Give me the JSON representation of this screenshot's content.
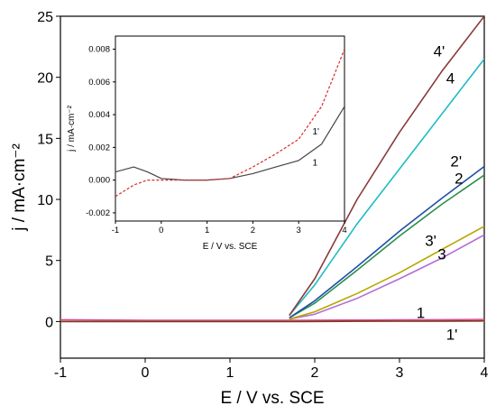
{
  "chart_data": [
    {
      "type": "line",
      "title": "",
      "xlabel": "E / V vs. SCE",
      "ylabel": "j / mA·cm⁻²",
      "xlim": [
        -1,
        4
      ],
      "ylim": [
        -3,
        25
      ],
      "xticks": [
        "-1",
        "0",
        "1",
        "2",
        "3",
        "4"
      ],
      "yticks": [
        "0",
        "5",
        "10",
        "15",
        "20",
        "25"
      ],
      "grid": false,
      "legend": "none",
      "series": [
        {
          "name": "1",
          "color": "#d94a8c",
          "style": "solid",
          "x": [
            -1,
            0,
            1,
            1.8,
            2.5,
            3,
            3.5,
            4
          ],
          "y": [
            0.15,
            0.1,
            0.1,
            0.1,
            0.12,
            0.13,
            0.15,
            0.18
          ]
        },
        {
          "name": "1'",
          "color": "#7a3b1f",
          "style": "solid",
          "x": [
            -1,
            0,
            1,
            1.8,
            2.5,
            3,
            3.5,
            4
          ],
          "y": [
            0.0,
            0.0,
            0.0,
            0.0,
            0.02,
            0.03,
            0.04,
            0.05
          ]
        },
        {
          "name": "2",
          "color": "#2a8f4a",
          "style": "solid",
          "x": [
            1.7,
            2.0,
            2.5,
            3.0,
            3.5,
            4.0
          ],
          "y": [
            0.3,
            1.5,
            4.2,
            7.0,
            9.6,
            12.0
          ]
        },
        {
          "name": "2'",
          "color": "#1f4fa8",
          "style": "solid",
          "x": [
            1.7,
            2.0,
            2.5,
            3.0,
            3.5,
            4.0
          ],
          "y": [
            0.3,
            1.7,
            4.5,
            7.4,
            10.1,
            12.7
          ]
        },
        {
          "name": "3",
          "color": "#b56cd6",
          "style": "solid",
          "x": [
            1.7,
            2.0,
            2.5,
            3.0,
            3.5,
            4.0
          ],
          "y": [
            0.2,
            0.6,
            1.9,
            3.5,
            5.2,
            7.1
          ]
        },
        {
          "name": "3'",
          "color": "#b5a800",
          "style": "solid",
          "x": [
            1.7,
            2.0,
            2.5,
            3.0,
            3.5,
            4.0
          ],
          "y": [
            0.2,
            0.8,
            2.3,
            4.0,
            5.9,
            7.8
          ]
        },
        {
          "name": "4",
          "color": "#1fbcc4",
          "style": "solid",
          "x": [
            1.7,
            2.0,
            2.5,
            3.0,
            3.5,
            4.0
          ],
          "y": [
            0.5,
            3.0,
            8.0,
            12.5,
            17.0,
            21.5
          ]
        },
        {
          "name": "4'",
          "color": "#8a3a3a",
          "style": "solid",
          "x": [
            1.7,
            2.0,
            2.5,
            3.0,
            3.5,
            4.0
          ],
          "y": [
            0.5,
            3.5,
            10.0,
            15.5,
            20.5,
            25.0
          ]
        }
      ],
      "annotations": [
        {
          "text": "4'",
          "x": 3.4,
          "y": 21.7
        },
        {
          "text": "4",
          "x": 3.55,
          "y": 19.5
        },
        {
          "text": "2'",
          "x": 3.6,
          "y": 12.7
        },
        {
          "text": "2",
          "x": 3.65,
          "y": 11.3
        },
        {
          "text": "3'",
          "x": 3.3,
          "y": 6.2
        },
        {
          "text": "3",
          "x": 3.45,
          "y": 5.1
        },
        {
          "text": "1",
          "x": 3.2,
          "y": 0.3
        },
        {
          "text": "1'",
          "x": 3.55,
          "y": -1.5
        }
      ]
    },
    {
      "type": "line",
      "title": "",
      "xlabel": "E / V vs. SCE",
      "ylabel": "j / mA·cm⁻²",
      "xlim": [
        -1,
        4
      ],
      "ylim": [
        -0.0025,
        0.0088
      ],
      "xticks": [
        "-1",
        "0",
        "1",
        "2",
        "3",
        "4"
      ],
      "yticks": [
        "-0.002",
        "0.000",
        "0.002",
        "0.004",
        "0.006",
        "0.008"
      ],
      "grid": false,
      "legend": "none",
      "series": [
        {
          "name": "1",
          "color": "#444444",
          "style": "solid",
          "x": [
            -1,
            -0.6,
            -0.3,
            0,
            0.5,
            1,
            1.5,
            2,
            2.5,
            3,
            3.5,
            4
          ],
          "y": [
            0.0005,
            0.0008,
            0.0005,
            0.0001,
            0.0,
            0.0,
            0.0001,
            0.0004,
            0.0008,
            0.0012,
            0.0022,
            0.0045
          ]
        },
        {
          "name": "1'",
          "color": "#d62a2a",
          "style": "dashed",
          "x": [
            -1,
            -0.6,
            -0.3,
            0,
            0.5,
            1,
            1.5,
            2,
            2.5,
            3,
            3.5,
            4
          ],
          "y": [
            -0.001,
            -0.0003,
            0.0,
            0.0,
            0.0,
            0.0,
            0.0001,
            0.0008,
            0.0016,
            0.0025,
            0.0045,
            0.008
          ]
        }
      ],
      "annotations": [
        {
          "text": "1'",
          "x": 3.3,
          "y": 0.0028
        },
        {
          "text": "1",
          "x": 3.3,
          "y": 0.0009
        }
      ]
    }
  ]
}
